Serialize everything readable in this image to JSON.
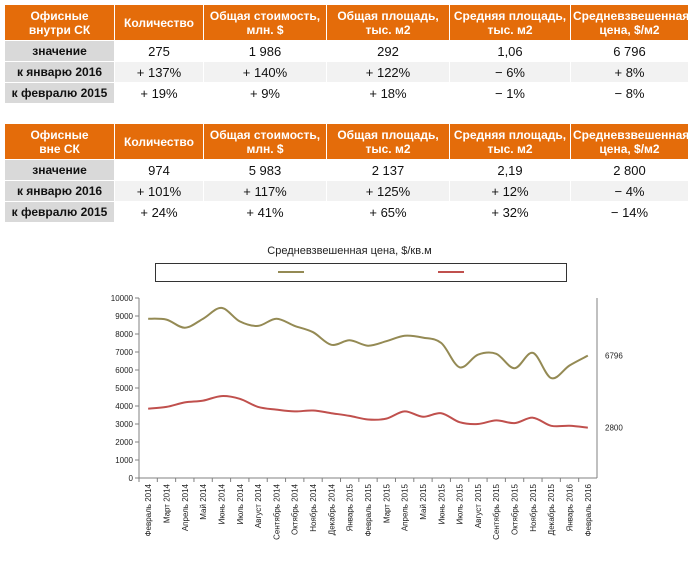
{
  "tables": [
    {
      "header": [
        "Офисные\nвнутри СК",
        "Количество",
        "Общая стоимость,\nмлн. $",
        "Общая площадь,\nтыс. м2",
        "Средняя площадь,\nтыс. м2",
        "Средневзвешенная\nцена, $/м2"
      ],
      "rows": [
        {
          "label": "значение",
          "cells": [
            "275",
            "1 986",
            "292",
            "1,06",
            "6 796"
          ]
        },
        {
          "label": "к январю 2016",
          "cells": [
            "+ 137%",
            "+ 140%",
            "+ 122%",
            "− 6%",
            "+ 8%"
          ]
        },
        {
          "label": "к февралю 2015",
          "cells": [
            "+ 19%",
            "+ 9%",
            "+ 18%",
            "− 1%",
            "− 8%"
          ]
        }
      ]
    },
    {
      "header": [
        "Офисные\nвне СК",
        "Количество",
        "Общая стоимость,\nмлн. $",
        "Общая площадь,\nтыс. м2",
        "Средняя площадь,\nтыс. м2",
        "Средневзвешенная\nцена, $/м2"
      ],
      "rows": [
        {
          "label": "значение",
          "cells": [
            "974",
            "5 983",
            "2 137",
            "2,19",
            "2 800"
          ]
        },
        {
          "label": "к январю 2016",
          "cells": [
            "+ 101%",
            "+ 117%",
            "+ 125%",
            "+ 12%",
            "− 4%"
          ]
        },
        {
          "label": "к февралю 2015",
          "cells": [
            "+ 24%",
            "+ 41%",
            "+ 65%",
            "+ 32%",
            "− 14%"
          ]
        }
      ]
    }
  ],
  "colors": {
    "header_bg": "#e46c0a",
    "series1": "#948a54",
    "series2": "#c0504d"
  },
  "chart_data": {
    "type": "line",
    "title": "Средневзвешенная цена, $/кв.м",
    "categories": [
      "Февраль 2014",
      "Март 2014",
      "Апрель 2014",
      "Май 2014",
      "Июнь 2014",
      "Июль 2014",
      "Август 2014",
      "Сентябрь 2014",
      "Октябрь 2014",
      "Ноябрь 2014",
      "Декабрь 2014",
      "Январь 2015",
      "Февраль 2015",
      "Март 2015",
      "Апрель 2015",
      "Май 2015",
      "Июнь 2015",
      "Июль 2015",
      "Август 2015",
      "Сентябрь 2015",
      "Октябрь 2015",
      "Ноябрь 2015",
      "Декабрь 2015",
      "Январь 2016",
      "Февраль 2016"
    ],
    "series": [
      {
        "name": "—",
        "values": [
          8850,
          8800,
          8350,
          8850,
          9450,
          8700,
          8450,
          8850,
          8450,
          8100,
          7400,
          7650,
          7350,
          7600,
          7900,
          7800,
          7500,
          6150,
          6850,
          6900,
          6100,
          6950,
          5550,
          6250,
          6796
        ]
      },
      {
        "name": "—",
        "values": [
          3850,
          3950,
          4200,
          4300,
          4550,
          4400,
          3950,
          3800,
          3700,
          3750,
          3600,
          3450,
          3250,
          3300,
          3700,
          3400,
          3600,
          3100,
          3000,
          3200,
          3050,
          3350,
          2900,
          2900,
          2800
        ]
      }
    ],
    "end_labels": [
      "6796",
      "2800"
    ],
    "yticks": [
      "0",
      "1000",
      "2000",
      "3000",
      "4000",
      "5000",
      "6000",
      "7000",
      "8000",
      "9000",
      "10000"
    ],
    "ylim": [
      0,
      10000
    ],
    "grid": false,
    "legend": "top"
  }
}
